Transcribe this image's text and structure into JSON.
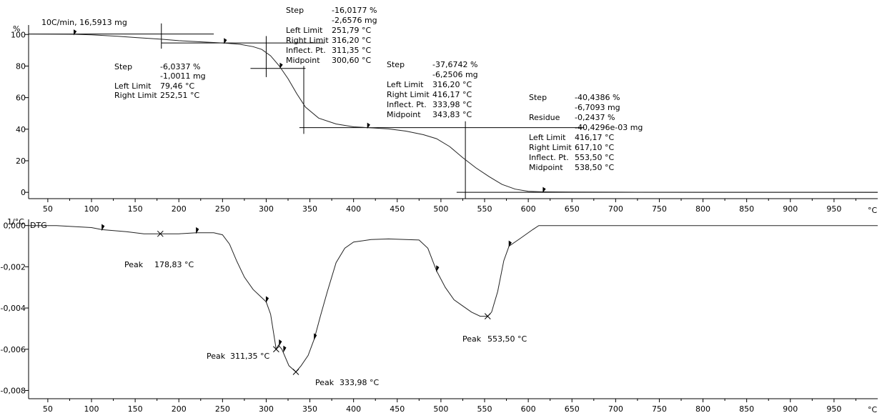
{
  "chart_data": [
    {
      "type": "line",
      "panel": "tga",
      "title": "10C/min, 16,5913 mg",
      "ylabel": "%",
      "x_unit_label": "°C",
      "xlim": [
        28,
        1000
      ],
      "ylim": [
        -4,
        106
      ],
      "xticks": [
        50,
        100,
        150,
        200,
        250,
        300,
        350,
        400,
        450,
        500,
        550,
        600,
        650,
        700,
        750,
        800,
        850,
        900,
        950
      ],
      "yticks": [
        0,
        20,
        40,
        60,
        80,
        100
      ],
      "ytick_labels": [
        "0",
        "20",
        "40",
        "60",
        "80",
        "100"
      ],
      "series": [
        {
          "x": [
            28,
            50,
            80,
            100,
            130,
            150,
            180,
            200,
            230,
            252,
            270,
            285,
            295,
            305,
            315,
            325,
            335,
            345,
            360,
            380,
            400,
            416,
            440,
            460,
            480,
            495,
            510,
            525,
            540,
            555,
            570,
            585,
            600,
            617,
            650,
            700,
            800,
            900,
            1000
          ],
          "y": [
            100.3,
            100.2,
            100.1,
            99.8,
            98.9,
            98.1,
            97,
            96.1,
            95.2,
            94.6,
            93.8,
            92.3,
            90.5,
            86.5,
            80,
            72,
            62.5,
            54,
            47,
            43.3,
            41.5,
            41,
            40.2,
            38.8,
            36.5,
            34,
            29,
            22,
            15.5,
            10,
            5,
            2,
            0.6,
            0.3,
            0.15,
            0.1,
            0.05,
            0.02,
            0
          ]
        }
      ],
      "markers": [
        {
          "x": 80,
          "y": 100.1
        },
        {
          "x": 252,
          "y": 94.6
        },
        {
          "x": 316,
          "y": 79
        },
        {
          "x": 416,
          "y": 41
        },
        {
          "x": 617,
          "y": 0.3
        }
      ],
      "steps": [
        {
          "limits": [
            180,
            252
          ],
          "levels": [
            100.3,
            94.6
          ]
        },
        {
          "limits": [
            300,
            343
          ],
          "levels": [
            94.6,
            78.5,
            41
          ]
        },
        {
          "limits": [
            526,
            530
          ],
          "levels": [
            41,
            0
          ]
        }
      ],
      "annotations": [
        {
          "lines": [
            [
              "Step",
              "-6,0337  %"
            ],
            [
              "",
              "-1,0011  mg"
            ],
            [
              "Left Limit",
              "79,46  °C"
            ],
            [
              "Right Limit",
              "252,51  °C"
            ]
          ]
        },
        {
          "lines": [
            [
              "Step",
              "-16,0177  %"
            ],
            [
              "",
              "-2,6576  mg"
            ],
            [
              "Left Limit",
              "251,79  °C"
            ],
            [
              "Right Limit",
              "316,20  °C"
            ],
            [
              "Inflect. Pt.",
              "311,35  °C"
            ],
            [
              "Midpoint",
              "300,60  °C"
            ]
          ]
        },
        {
          "lines": [
            [
              "Step",
              "-37,6742  %"
            ],
            [
              "",
              "-6,2506  mg"
            ],
            [
              "Left Limit",
              "316,20  °C"
            ],
            [
              "Right Limit",
              "416,17  °C"
            ],
            [
              "Inflect. Pt.",
              "333,98  °C"
            ],
            [
              "Midpoint",
              "343,83  °C"
            ]
          ]
        },
        {
          "lines": [
            [
              "Step",
              "-40,4386  %"
            ],
            [
              "",
              "-6,7093  mg"
            ],
            [
              "Residue",
              "-0,2437  %"
            ],
            [
              "",
              "-40,4296e-03  mg"
            ],
            [
              "Left Limit",
              "416,17  °C"
            ],
            [
              "Right Limit",
              "617,10  °C"
            ],
            [
              "Inflect. Pt.",
              "553,50  °C"
            ],
            [
              "Midpoint",
              "538,50  °C"
            ]
          ]
        }
      ]
    },
    {
      "type": "line",
      "panel": "dtg",
      "title": "DTG",
      "ylabel": "1/°C",
      "x_unit_label": "°C",
      "xlim": [
        28,
        1000
      ],
      "ylim": [
        -0.0084,
        0.0003
      ],
      "xticks": [
        50,
        100,
        150,
        200,
        250,
        300,
        350,
        400,
        450,
        500,
        550,
        600,
        650,
        700,
        750,
        800,
        850,
        900,
        950
      ],
      "yticks": [
        0,
        -0.002,
        -0.004,
        -0.006,
        -0.008
      ],
      "ytick_labels": [
        "0,000",
        "-0,002",
        "-0,004",
        "-0,006",
        "-0,008"
      ],
      "series": [
        {
          "x": [
            28,
            60,
            100,
            112,
            140,
            160,
            178.8,
            200,
            220,
            240,
            250,
            258,
            266,
            275,
            285,
            295,
            300,
            305,
            311.4,
            314,
            318,
            322,
            326,
            333.98,
            340,
            348,
            355,
            362,
            370,
            380,
            390,
            400,
            420,
            440,
            460,
            475,
            485,
            495,
            505,
            515,
            525,
            535,
            545,
            553.5,
            558,
            565,
            572,
            578,
            590,
            605,
            612,
            640,
            700,
            800,
            900,
            1000
          ],
          "y": [
            0,
            0,
            -0.0001,
            -0.0002,
            -0.0003,
            -0.0004,
            -0.0004,
            -0.0004,
            -0.00035,
            -0.00035,
            -0.00045,
            -0.0009,
            -0.0017,
            -0.0025,
            -0.0031,
            -0.0035,
            -0.0037,
            -0.0043,
            -0.006,
            -0.0058,
            -0.006,
            -0.0064,
            -0.0068,
            -0.0071,
            -0.0068,
            -0.0063,
            -0.0055,
            -0.0044,
            -0.0032,
            -0.0018,
            -0.0011,
            -0.0008,
            -0.00068,
            -0.00065,
            -0.00068,
            -0.0007,
            -0.0011,
            -0.0022,
            -0.003,
            -0.0036,
            -0.0039,
            -0.0042,
            -0.0044,
            -0.0044,
            -0.0042,
            -0.0032,
            -0.0017,
            -0.001,
            -0.00065,
            -0.0002,
            0,
            0,
            0,
            0,
            0,
            0
          ]
        }
      ],
      "flag_markers": [
        {
          "x": 112,
          "y": -0.0002
        },
        {
          "x": 220,
          "y": -0.00035
        },
        {
          "x": 300,
          "y": -0.0037
        },
        {
          "x": 315,
          "y": -0.0058
        },
        {
          "x": 320,
          "y": -0.0061
        },
        {
          "x": 355,
          "y": -0.0055
        },
        {
          "x": 495,
          "y": -0.0022
        },
        {
          "x": 578,
          "y": -0.001
        }
      ],
      "x_markers": [
        {
          "x": 178.8,
          "y": -0.0004
        },
        {
          "x": 311.4,
          "y": -0.006
        },
        {
          "x": 333.98,
          "y": -0.0071
        },
        {
          "x": 553.5,
          "y": -0.0044
        }
      ],
      "peaks": [
        {
          "label": "Peak",
          "value": "178,83  °C"
        },
        {
          "label": "Peak",
          "value": "311,35  °C"
        },
        {
          "label": "Peak",
          "value": "333,98  °C"
        },
        {
          "label": "Peak",
          "value": "553,50  °C"
        }
      ]
    }
  ]
}
